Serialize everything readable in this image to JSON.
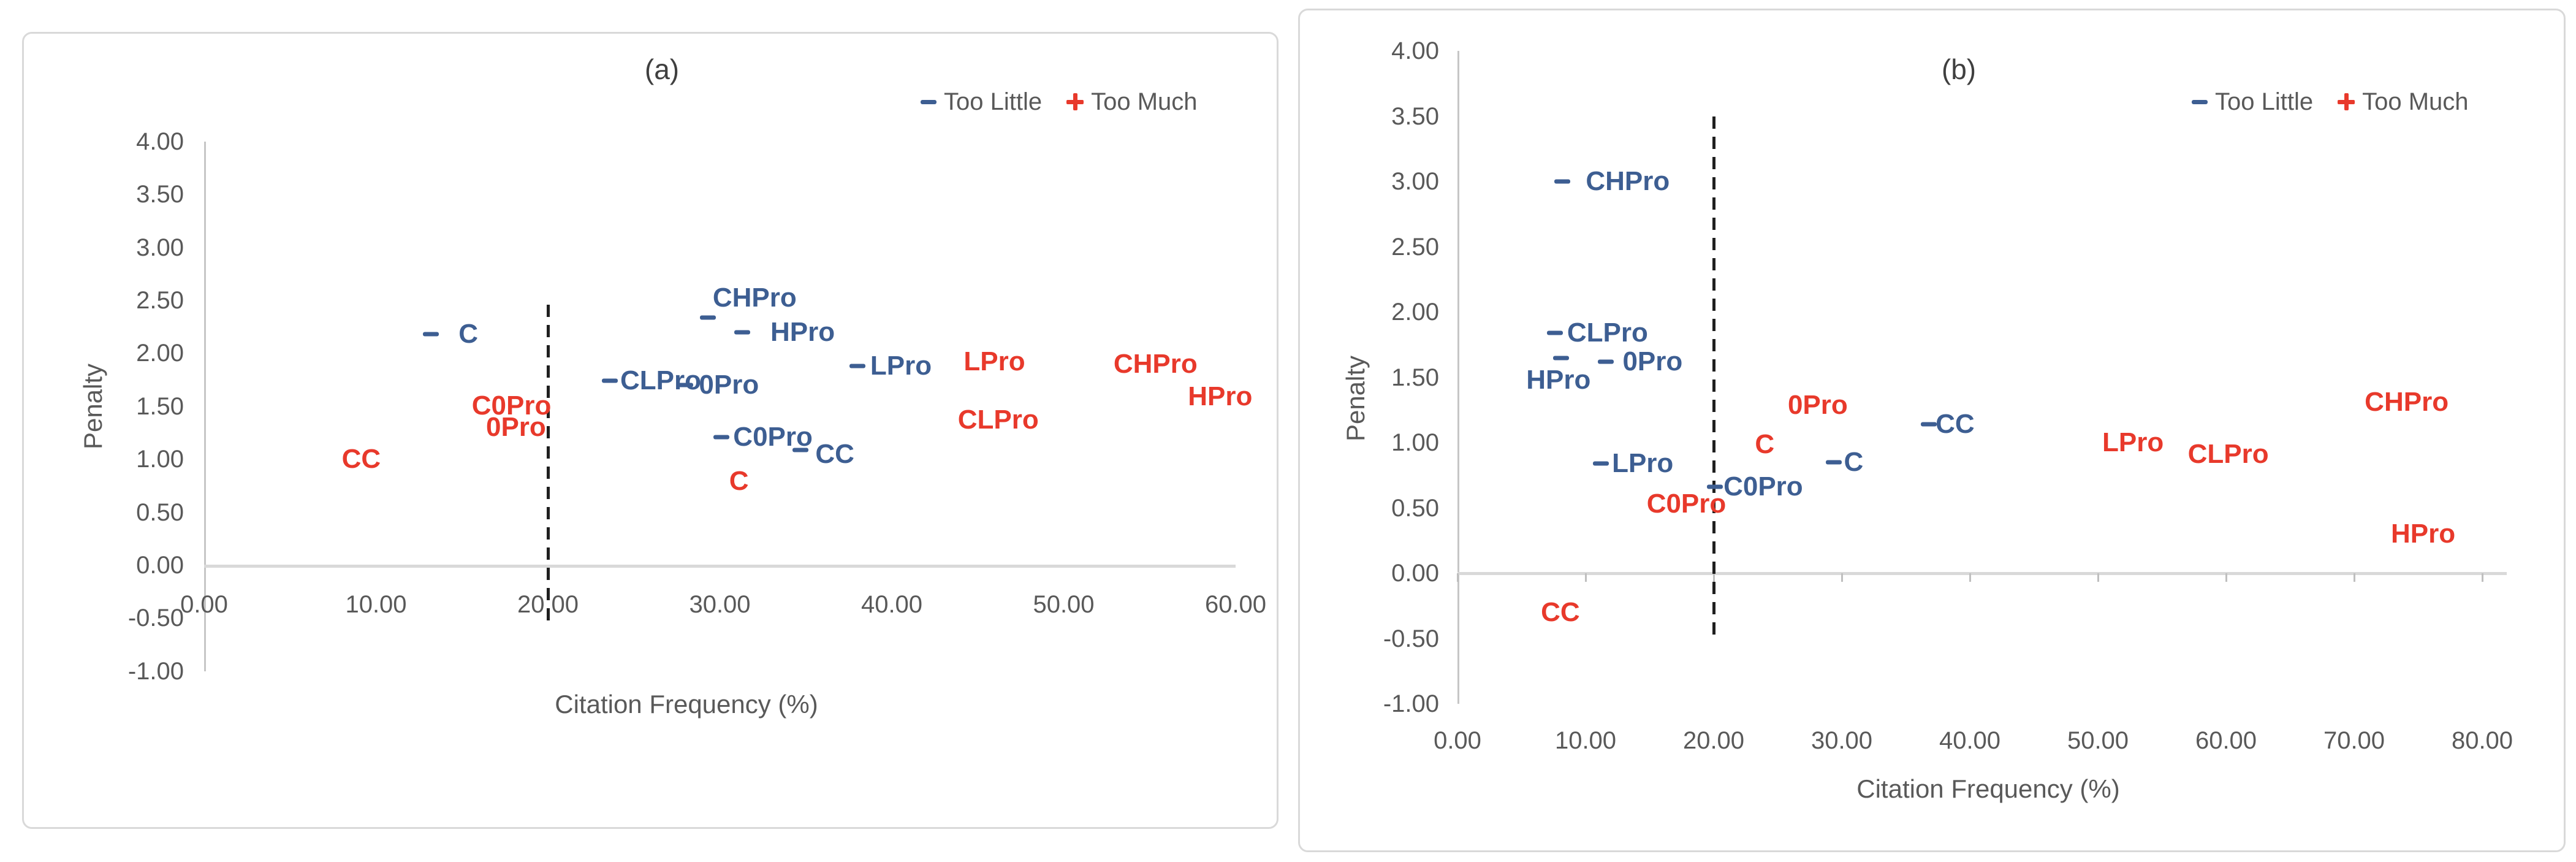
{
  "figure": {
    "background": "#ffffff",
    "legend": {
      "too_little_label": "Too Little",
      "too_much_label": "Too Much"
    }
  },
  "colors": {
    "too_little": "#3d5e92",
    "too_much": "#e8392b",
    "axis_text": "#595959",
    "axis_line": "#c6c6c6",
    "x_axis_line": "#d9d9d9",
    "panel_border": "#d9d9d9",
    "threshold_line": "#1f1f1f",
    "title_text": "#3f3f3f"
  },
  "chart_data": [
    {
      "id": "a",
      "type": "scatter",
      "title": "(a)",
      "xlabel": "Citation Frequency (%)",
      "ylabel": "Penalty",
      "xlim": [
        0,
        60
      ],
      "ylim": [
        -1,
        4
      ],
      "grid": false,
      "legend_position": "top-right",
      "threshold_x": 20,
      "x_ticks": [
        {
          "v": 0,
          "label": "0.00"
        },
        {
          "v": 10,
          "label": "10.00"
        },
        {
          "v": 20,
          "label": "20.00"
        },
        {
          "v": 30,
          "label": "30.00"
        },
        {
          "v": 40,
          "label": "40.00"
        },
        {
          "v": 50,
          "label": "50.00"
        },
        {
          "v": 60,
          "label": "60.00"
        }
      ],
      "y_ticks": [
        {
          "v": 4,
          "label": "4.00"
        },
        {
          "v": 3.5,
          "label": "3.50"
        },
        {
          "v": 3,
          "label": "3.00"
        },
        {
          "v": 2.5,
          "label": "2.50"
        },
        {
          "v": 2,
          "label": "2.00"
        },
        {
          "v": 1.5,
          "label": "1.50"
        },
        {
          "v": 1,
          "label": "1.00"
        },
        {
          "v": 0.5,
          "label": "0.50"
        },
        {
          "v": 0,
          "label": "0.00"
        },
        {
          "v": -0.5,
          "label": "-0.50"
        },
        {
          "v": -1,
          "label": "-1.00"
        }
      ],
      "series": [
        {
          "name": "Too Little",
          "marker": "dash",
          "color_key": "too_little",
          "points": [
            {
              "label": "C",
              "x": 13.2,
              "y": 2.18,
              "dx": 45
            },
            {
              "label": "CHPro",
              "x": 29.3,
              "y": 2.34,
              "dx": 8,
              "dy": -32
            },
            {
              "label": "HPro",
              "x": 31.3,
              "y": 2.2,
              "dx": 46
            },
            {
              "label": "CLPro",
              "x": 23.6,
              "y": 1.74,
              "dx": 17
            },
            {
              "label": "0Pro",
              "x": 28.0,
              "y": 1.7,
              "dx": 22
            },
            {
              "label": "LPro",
              "x": 38.0,
              "y": 1.88,
              "dx": 21
            },
            {
              "label": "C0Pro",
              "x": 30.1,
              "y": 1.21,
              "dx": 19
            },
            {
              "label": "CC",
              "x": 34.7,
              "y": 1.09,
              "dx": 24,
              "dy": 7
            }
          ]
        },
        {
          "name": "Too Much",
          "marker": "plus",
          "color_key": "too_much",
          "points": [
            {
              "label": "CC",
              "x": 7.4,
              "y": 1.0,
              "dx": 17
            },
            {
              "label": "C0Pro",
              "x": 15.0,
              "y": 1.41,
              "dx": 16,
              "dy": -16
            },
            {
              "label": "0Pro",
              "x": 15.9,
              "y": 1.33,
              "dx": 14,
              "dy": 5
            },
            {
              "label": "C",
              "x": 29.9,
              "y": 0.79,
              "dx": 18
            },
            {
              "label": "LPro",
              "x": 43.4,
              "y": 1.92,
              "dx": 22
            },
            {
              "label": "CLPro",
              "x": 43.2,
              "y": 1.37,
              "dx": 18
            },
            {
              "label": "CHPro",
              "x": 52.4,
              "y": 1.9,
              "dx": 14
            },
            {
              "label": "HPro",
              "x": 56.3,
              "y": 1.59,
              "dx": 26
            }
          ]
        }
      ]
    },
    {
      "id": "b",
      "type": "scatter",
      "title": "(b)",
      "xlabel": "Citation Frequency (%)",
      "ylabel": "Penalty",
      "xlim": [
        0,
        80
      ],
      "ylim": [
        -1,
        4
      ],
      "grid": false,
      "legend_position": "top-right",
      "threshold_x": 20,
      "x_ticks": [
        {
          "v": 0,
          "label": "0.00"
        },
        {
          "v": 10,
          "label": "10.00"
        },
        {
          "v": 20,
          "label": "20.00"
        },
        {
          "v": 30,
          "label": "30.00"
        },
        {
          "v": 40,
          "label": "40.00"
        },
        {
          "v": 50,
          "label": "50.00"
        },
        {
          "v": 60,
          "label": "60.00"
        },
        {
          "v": 70,
          "label": "70.00"
        },
        {
          "v": 80,
          "label": "80.00"
        }
      ],
      "y_ticks": [
        {
          "v": 4,
          "label": "4.00"
        },
        {
          "v": 3.5,
          "label": "3.50"
        },
        {
          "v": 3,
          "label": "3.00"
        },
        {
          "v": 2.5,
          "label": "2.50"
        },
        {
          "v": 2,
          "label": "2.00"
        },
        {
          "v": 1.5,
          "label": "1.50"
        },
        {
          "v": 1,
          "label": "1.00"
        },
        {
          "v": 0.5,
          "label": "0.50"
        },
        {
          "v": 0,
          "label": "0.00"
        },
        {
          "v": -0.5,
          "label": "-0.50"
        },
        {
          "v": -1,
          "label": "-1.00"
        }
      ],
      "series": [
        {
          "name": "Too Little",
          "marker": "dash",
          "color_key": "too_little",
          "points": [
            {
              "label": "CHPro",
              "x": 8.2,
              "y": 3.0,
              "dx": 38
            },
            {
              "label": "CLPro",
              "x": 7.6,
              "y": 1.84,
              "dx": 20
            },
            {
              "label": "HPro",
              "x": 8.1,
              "y": 1.65,
              "dx": -57,
              "dy": 36
            },
            {
              "label": "0Pro",
              "x": 11.6,
              "y": 1.62,
              "dx": 27
            },
            {
              "label": "LPro",
              "x": 11.2,
              "y": 0.84,
              "dx": 18
            },
            {
              "label": "C0Pro",
              "x": 20.1,
              "y": 0.66,
              "dx": 14
            },
            {
              "label": "C",
              "x": 29.4,
              "y": 0.85,
              "dx": 16
            },
            {
              "label": "CC",
              "x": 36.8,
              "y": 1.14,
              "dx": 11
            }
          ]
        },
        {
          "name": "Too Much",
          "marker": "plus",
          "color_key": "too_much",
          "points": [
            {
              "label": "CC",
              "x": 5.7,
              "y": -0.3,
              "dx": 17
            },
            {
              "label": "C0Pro",
              "x": 14.1,
              "y": 0.53,
              "dx": 14
            },
            {
              "label": "C",
              "x": 22.6,
              "y": 1.08,
              "dx": 13,
              "dy": 20
            },
            {
              "label": "0Pro",
              "x": 24.4,
              "y": 1.24,
              "dx": 29,
              "dy": -10
            },
            {
              "label": "LPro",
              "x": 48.9,
              "y": 1.0,
              "dx": 30
            },
            {
              "label": "CLPro",
              "x": 56.2,
              "y": 0.91,
              "dx": 17
            },
            {
              "label": "CHPro",
              "x": 70.2,
              "y": 1.31,
              "dx": 13
            },
            {
              "label": "HPro",
              "x": 72.2,
              "y": 0.3,
              "dx": 14
            }
          ]
        }
      ]
    }
  ]
}
